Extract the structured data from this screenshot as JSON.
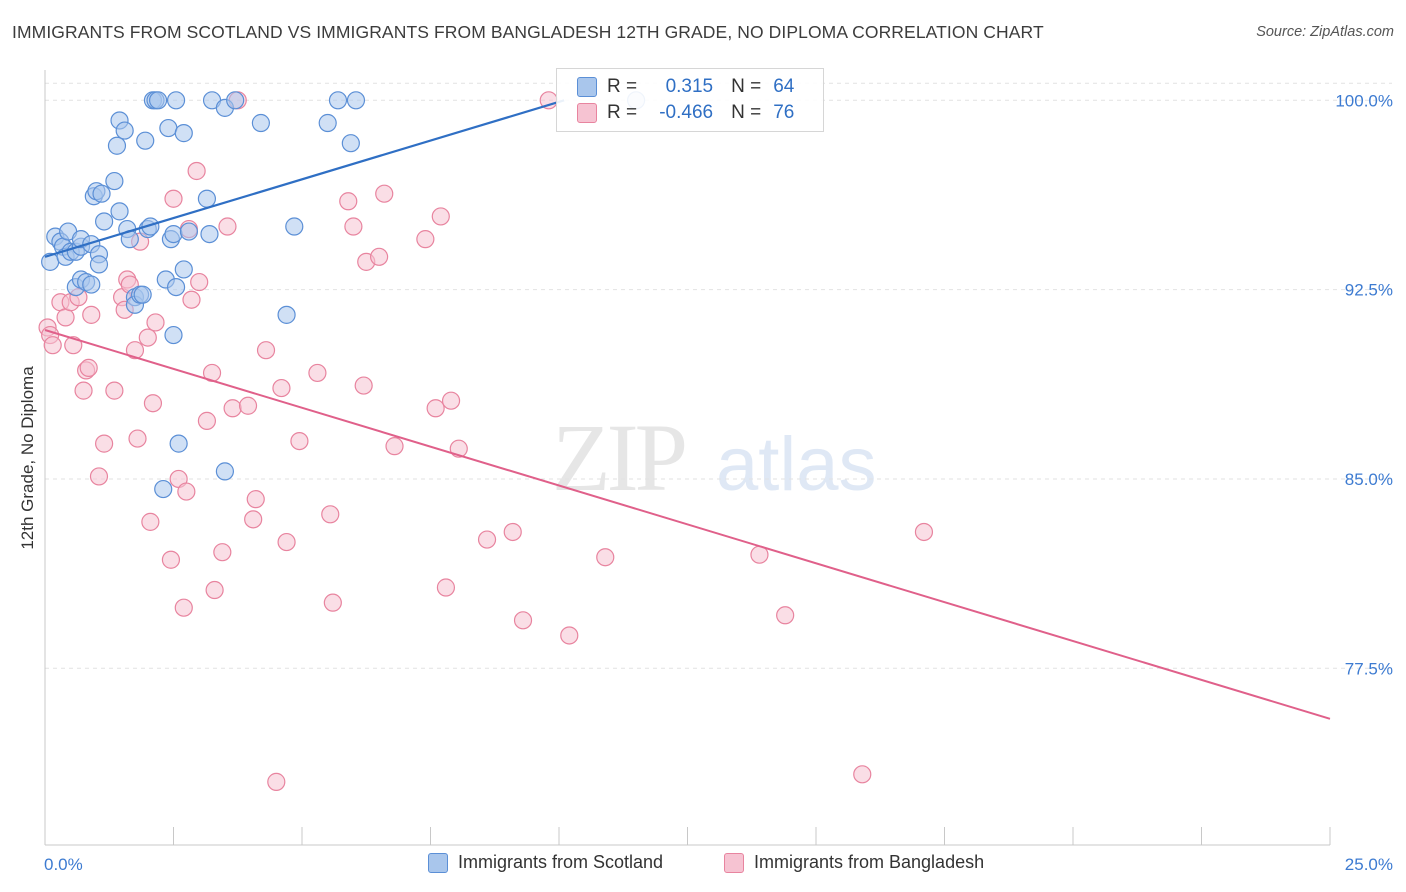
{
  "header": {
    "title": "IMMIGRANTS FROM SCOTLAND VS IMMIGRANTS FROM BANGLADESH 12TH GRADE, NO DIPLOMA CORRELATION CHART",
    "source": "Source: ZipAtlas.com"
  },
  "legend": {
    "scotland": {
      "r_label": "R =",
      "r_value": "0.315",
      "n_label": "N =",
      "n_value": "64"
    },
    "bangladesh": {
      "r_label": "R =",
      "r_value": "-0.466",
      "n_label": "N =",
      "n_value": "76"
    }
  },
  "bottom_legend": {
    "scotland": "Immigrants from Scotland",
    "bangladesh": "Immigrants from Bangladesh"
  },
  "watermark": {
    "zip": "ZIP",
    "atlas": "atlas"
  },
  "chart_data": {
    "type": "scatter",
    "title": "IMMIGRANTS FROM SCOTLAND VS IMMIGRANTS FROM BANGLADESH 12TH GRADE, NO DIPLOMA CORRELATION CHART",
    "xlabel": "",
    "ylabel": "12th Grade, No Diploma",
    "xlim": [
      0,
      25
    ],
    "ylim": [
      70.5,
      101.2
    ],
    "x_tick_labels": [
      "0.0%",
      "25.0%"
    ],
    "x_tick_values": [
      0,
      25
    ],
    "y_tick_labels": [
      "100.0%",
      "92.5%",
      "85.0%",
      "77.5%"
    ],
    "y_tick_values": [
      100,
      92.5,
      85,
      77.5
    ],
    "grid": true,
    "legend_position": "top-center",
    "colors": {
      "scotland": "#5b8fd6",
      "scotland_fill": "#a9c6ec",
      "scotland_line": "#2f6fc4",
      "bangladesh": "#e8849f",
      "bangladesh_fill": "#f6c3d2",
      "bangladesh_line": "#e0608a"
    },
    "series": [
      {
        "name": "Immigrants from Scotland",
        "key": "scotland",
        "trend": {
          "x": [
            0,
            10.1
          ],
          "y": [
            93.8,
            100.0
          ]
        },
        "points": [
          [
            0.1,
            93.6
          ],
          [
            0.2,
            94.6
          ],
          [
            0.3,
            94.4
          ],
          [
            0.35,
            94.2
          ],
          [
            0.4,
            93.8
          ],
          [
            0.45,
            94.8
          ],
          [
            0.5,
            94.0
          ],
          [
            0.6,
            94.0
          ],
          [
            0.6,
            92.6
          ],
          [
            0.7,
            94.2
          ],
          [
            0.7,
            92.9
          ],
          [
            0.7,
            94.5
          ],
          [
            0.8,
            92.8
          ],
          [
            0.9,
            92.7
          ],
          [
            0.9,
            94.3
          ],
          [
            0.95,
            96.2
          ],
          [
            1.0,
            96.4
          ],
          [
            1.05,
            93.9
          ],
          [
            1.05,
            93.5
          ],
          [
            1.1,
            96.3
          ],
          [
            1.15,
            95.2
          ],
          [
            1.35,
            96.8
          ],
          [
            1.4,
            98.2
          ],
          [
            1.45,
            95.6
          ],
          [
            1.45,
            99.2
          ],
          [
            1.55,
            98.8
          ],
          [
            1.6,
            94.9
          ],
          [
            1.65,
            94.5
          ],
          [
            1.75,
            92.2
          ],
          [
            1.75,
            91.9
          ],
          [
            1.85,
            92.3
          ],
          [
            1.9,
            92.3
          ],
          [
            1.95,
            98.4
          ],
          [
            2.0,
            94.9
          ],
          [
            2.05,
            95.0
          ],
          [
            2.1,
            100.0
          ],
          [
            2.15,
            100.0
          ],
          [
            2.2,
            100.0
          ],
          [
            2.35,
            92.9
          ],
          [
            2.4,
            98.9
          ],
          [
            2.45,
            94.5
          ],
          [
            2.5,
            94.7
          ],
          [
            2.5,
            90.7
          ],
          [
            2.55,
            92.6
          ],
          [
            2.55,
            100.0
          ],
          [
            2.6,
            86.4
          ],
          [
            2.7,
            93.3
          ],
          [
            2.7,
            98.7
          ],
          [
            2.8,
            94.8
          ],
          [
            3.15,
            96.1
          ],
          [
            3.2,
            94.7
          ],
          [
            3.25,
            100.0
          ],
          [
            3.5,
            85.3
          ],
          [
            3.5,
            99.7
          ],
          [
            3.7,
            100.0
          ],
          [
            4.2,
            99.1
          ],
          [
            4.7,
            91.5
          ],
          [
            4.85,
            95.0
          ],
          [
            5.5,
            99.1
          ],
          [
            5.7,
            100.0
          ],
          [
            5.95,
            98.3
          ],
          [
            6.05,
            100.0
          ],
          [
            2.3,
            84.6
          ],
          [
            11.5,
            100.0
          ]
        ]
      },
      {
        "name": "Immigrants from Bangladesh",
        "key": "bangladesh",
        "trend": {
          "x": [
            0,
            25
          ],
          "y": [
            90.9,
            75.5
          ]
        },
        "points": [
          [
            0.05,
            91.0
          ],
          [
            0.1,
            90.7
          ],
          [
            0.15,
            90.3
          ],
          [
            0.3,
            92.0
          ],
          [
            0.4,
            91.4
          ],
          [
            0.5,
            92.0
          ],
          [
            0.55,
            90.3
          ],
          [
            0.65,
            92.2
          ],
          [
            0.75,
            88.5
          ],
          [
            0.8,
            89.3
          ],
          [
            0.85,
            89.4
          ],
          [
            0.9,
            91.5
          ],
          [
            1.05,
            85.1
          ],
          [
            1.15,
            86.4
          ],
          [
            1.35,
            88.5
          ],
          [
            1.5,
            92.2
          ],
          [
            1.55,
            91.7
          ],
          [
            1.6,
            92.9
          ],
          [
            1.65,
            92.7
          ],
          [
            1.75,
            90.1
          ],
          [
            1.8,
            86.6
          ],
          [
            1.85,
            94.4
          ],
          [
            2.0,
            90.6
          ],
          [
            2.05,
            83.3
          ],
          [
            2.1,
            88.0
          ],
          [
            2.15,
            91.2
          ],
          [
            2.45,
            81.8
          ],
          [
            2.5,
            96.1
          ],
          [
            2.6,
            85.0
          ],
          [
            2.7,
            79.9
          ],
          [
            2.75,
            84.5
          ],
          [
            2.8,
            94.9
          ],
          [
            2.85,
            92.1
          ],
          [
            2.95,
            97.2
          ],
          [
            3.0,
            92.8
          ],
          [
            3.15,
            87.3
          ],
          [
            3.25,
            89.2
          ],
          [
            3.3,
            80.6
          ],
          [
            3.45,
            82.1
          ],
          [
            3.55,
            95.0
          ],
          [
            3.65,
            87.8
          ],
          [
            3.75,
            100.0
          ],
          [
            3.95,
            87.9
          ],
          [
            4.05,
            83.4
          ],
          [
            4.1,
            84.2
          ],
          [
            4.3,
            90.1
          ],
          [
            4.5,
            73.0
          ],
          [
            4.6,
            88.6
          ],
          [
            4.7,
            82.5
          ],
          [
            4.95,
            86.5
          ],
          [
            5.3,
            89.2
          ],
          [
            5.55,
            83.6
          ],
          [
            5.6,
            80.1
          ],
          [
            5.9,
            96.0
          ],
          [
            6.0,
            95.0
          ],
          [
            6.2,
            88.7
          ],
          [
            6.25,
            93.6
          ],
          [
            6.5,
            93.8
          ],
          [
            6.6,
            96.3
          ],
          [
            6.8,
            86.3
          ],
          [
            7.4,
            94.5
          ],
          [
            7.6,
            87.8
          ],
          [
            7.7,
            95.4
          ],
          [
            7.8,
            80.7
          ],
          [
            7.9,
            88.1
          ],
          [
            8.05,
            86.2
          ],
          [
            8.6,
            82.6
          ],
          [
            9.1,
            82.9
          ],
          [
            9.3,
            79.4
          ],
          [
            9.8,
            100.0
          ],
          [
            10.2,
            78.8
          ],
          [
            10.9,
            81.9
          ],
          [
            13.9,
            82.0
          ],
          [
            14.4,
            79.6
          ],
          [
            15.9,
            73.3
          ],
          [
            17.1,
            82.9
          ]
        ]
      }
    ]
  }
}
